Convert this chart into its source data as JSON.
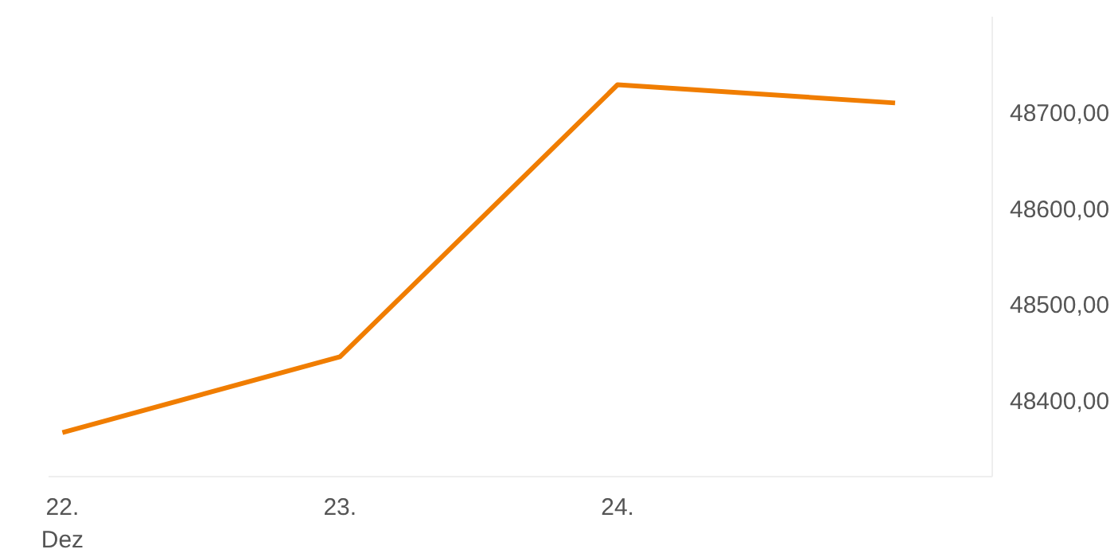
{
  "chart_data": {
    "type": "line",
    "categories": [
      "22.\nDez",
      "23.",
      "24.",
      null
    ],
    "series": [
      {
        "color": "#f07d00",
        "values": [
          48366,
          48445,
          48729,
          48710
        ]
      }
    ],
    "ylim": [
      48320,
      48800
    ],
    "yticks": [
      {
        "value": 48400,
        "label": "48400,00"
      },
      {
        "value": 48500,
        "label": "48500,00"
      },
      {
        "value": 48600,
        "label": "48600,00"
      },
      {
        "value": 48700,
        "label": "48700,00"
      }
    ],
    "grid": false,
    "marker": "none",
    "line_style": "solid"
  }
}
